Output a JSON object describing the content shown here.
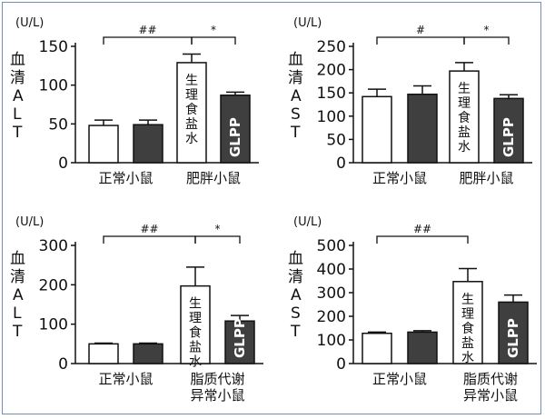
{
  "panels": [
    {
      "unit": "(U/L)",
      "ylabel": "血清ALT",
      "ylim": [
        0,
        150
      ],
      "ticks": [
        0,
        50,
        100,
        150
      ],
      "groups": [
        "正常小鼠",
        "肥胖小鼠"
      ],
      "bars": [
        {
          "value": 48,
          "err": 7,
          "fill": "white",
          "label": ""
        },
        {
          "value": 49,
          "err": 6,
          "fill": "dark",
          "label": ""
        },
        {
          "value": 129,
          "err": 11,
          "fill": "white",
          "label": "生理食盐水"
        },
        {
          "value": 87,
          "err": 4,
          "fill": "dark",
          "label": "GLPP"
        }
      ],
      "brackets": [
        {
          "from": 0,
          "to": 2,
          "text": "##"
        },
        {
          "from": 2,
          "to": 3,
          "text": "*"
        }
      ]
    },
    {
      "unit": "(U/L)",
      "ylabel": "血清AST",
      "ylim": [
        0,
        250
      ],
      "ticks": [
        0,
        50,
        100,
        150,
        200,
        250
      ],
      "groups": [
        "正常小鼠",
        "肥胖小鼠"
      ],
      "bars": [
        {
          "value": 142,
          "err": 16,
          "fill": "white",
          "label": ""
        },
        {
          "value": 147,
          "err": 18,
          "fill": "dark",
          "label": ""
        },
        {
          "value": 197,
          "err": 18,
          "fill": "white",
          "label": "生理食盐水"
        },
        {
          "value": 138,
          "err": 8,
          "fill": "dark",
          "label": "GLPP"
        }
      ],
      "brackets": [
        {
          "from": 0,
          "to": 2,
          "text": "#"
        },
        {
          "from": 2,
          "to": 3,
          "text": "*"
        }
      ]
    },
    {
      "unit": "(U/L)",
      "ylabel": "血清ALT",
      "ylim": [
        0,
        300
      ],
      "ticks": [
        0,
        100,
        200,
        300
      ],
      "groups": [
        "正常小鼠",
        "脂质代谢\n异常小鼠"
      ],
      "bars": [
        {
          "value": 50,
          "err": 2,
          "fill": "white",
          "label": ""
        },
        {
          "value": 50,
          "err": 2,
          "fill": "dark",
          "label": ""
        },
        {
          "value": 197,
          "err": 48,
          "fill": "white",
          "label": "生理食盐水"
        },
        {
          "value": 108,
          "err": 14,
          "fill": "dark",
          "label": "GLPP"
        }
      ],
      "brackets": [
        {
          "from": 0,
          "to": 2,
          "text": "##"
        },
        {
          "from": 2,
          "to": 3,
          "text": "*"
        }
      ]
    },
    {
      "unit": "(U/L)",
      "ylabel": "血清AST",
      "ylim": [
        0,
        500
      ],
      "ticks": [
        0,
        100,
        200,
        300,
        400,
        500
      ],
      "groups": [
        "正常小鼠",
        "脂质代谢\n异常小鼠"
      ],
      "bars": [
        {
          "value": 128,
          "err": 5,
          "fill": "white",
          "label": ""
        },
        {
          "value": 133,
          "err": 6,
          "fill": "dark",
          "label": ""
        },
        {
          "value": 347,
          "err": 55,
          "fill": "white",
          "label": "生理食盐水"
        },
        {
          "value": 260,
          "err": 30,
          "fill": "dark",
          "label": "GLPP"
        }
      ],
      "brackets": [
        {
          "from": 0,
          "to": 2,
          "text": "##"
        }
      ]
    }
  ],
  "colors": {
    "dark": "#3f3f3f",
    "white": "#ffffff",
    "stroke": "#111111"
  },
  "chart_data": [
    {
      "type": "bar",
      "ylabel": "血清ALT",
      "unit": "(U/L)",
      "ylim": [
        0,
        150
      ],
      "categories": [
        "正常小鼠",
        "肥胖小鼠"
      ],
      "series": [
        {
          "name": "生理食盐水",
          "values": [
            48,
            129
          ],
          "errors": [
            7,
            11
          ]
        },
        {
          "name": "GLPP",
          "values": [
            49,
            87
          ],
          "errors": [
            6,
            4
          ]
        }
      ]
    },
    {
      "type": "bar",
      "ylabel": "血清AST",
      "unit": "(U/L)",
      "ylim": [
        0,
        250
      ],
      "categories": [
        "正常小鼠",
        "肥胖小鼠"
      ],
      "series": [
        {
          "name": "生理食盐水",
          "values": [
            142,
            197
          ],
          "errors": [
            16,
            18
          ]
        },
        {
          "name": "GLPP",
          "values": [
            147,
            138
          ],
          "errors": [
            18,
            8
          ]
        }
      ]
    },
    {
      "type": "bar",
      "ylabel": "血清ALT",
      "unit": "(U/L)",
      "ylim": [
        0,
        300
      ],
      "categories": [
        "正常小鼠",
        "脂质代谢异常小鼠"
      ],
      "series": [
        {
          "name": "生理食盐水",
          "values": [
            50,
            197
          ],
          "errors": [
            2,
            48
          ]
        },
        {
          "name": "GLPP",
          "values": [
            50,
            108
          ],
          "errors": [
            2,
            14
          ]
        }
      ]
    },
    {
      "type": "bar",
      "ylabel": "血清AST",
      "unit": "(U/L)",
      "ylim": [
        0,
        500
      ],
      "categories": [
        "正常小鼠",
        "脂质代谢异常小鼠"
      ],
      "series": [
        {
          "name": "生理食盐水",
          "values": [
            128,
            347
          ],
          "errors": [
            5,
            55
          ]
        },
        {
          "name": "GLPP",
          "values": [
            133,
            260
          ],
          "errors": [
            6,
            30
          ]
        }
      ]
    }
  ]
}
